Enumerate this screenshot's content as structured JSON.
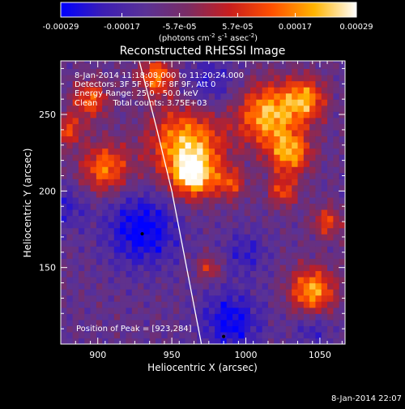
{
  "chart_data": {
    "type": "heatmap",
    "title": "Reconstructed RHESSI Image",
    "xlabel": "Heliocentric X (arcsec)",
    "ylabel": "Heliocentric Y (arcsec)",
    "xlim": [
      875,
      1067
    ],
    "ylim": [
      100,
      285
    ],
    "x_ticks": [
      900,
      950,
      1000,
      1050
    ],
    "y_ticks": [
      150,
      200,
      250
    ],
    "colorbar": {
      "range": [
        -0.00029,
        0.00029
      ],
      "tick_values": [
        -0.00029,
        -0.00017,
        -5.7e-05,
        5.7e-05,
        0.00017,
        0.00029
      ],
      "tick_labels": [
        "-0.00029",
        "-0.00017",
        "-5.7e-05",
        "5.7e-05",
        "0.00017",
        "0.00029"
      ],
      "unit_prefix": "(photons cm",
      "unit_sup1": "-2",
      "unit_mid": " s",
      "unit_sup2": "-1",
      "unit_mid2": " asec",
      "unit_sup3": "-2",
      "unit_suffix": ")",
      "colors": [
        "#0000ff",
        "#3c1eb4",
        "#5a3296",
        "#7a2c64",
        "#c81e1e",
        "#ff5000",
        "#ffb400",
        "#ffffff"
      ]
    },
    "annotations": [
      "8-Jan-2014 11:18:08.000 to 11:20:24.000",
      "Detectors: 3F 5F 6F 7F 8F 9F, Att 0",
      "Energy Range: 25.0 - 50.0 keV",
      "Clean      Total counts: 3.75E+03"
    ],
    "peak_label": "Position of Peak = [923,284]",
    "limb_points": [
      [
        928,
        285
      ],
      [
        940,
        240
      ],
      [
        950,
        200
      ],
      [
        958,
        160
      ],
      [
        966,
        120
      ],
      [
        970,
        100
      ]
    ],
    "markers": [
      [
        930,
        172
      ],
      [
        985,
        105
      ]
    ],
    "hot_spots": [
      [
        960,
        230,
        25,
        1.0
      ],
      [
        965,
        210,
        14,
        0.9
      ],
      [
        1015,
        250,
        20,
        1.0
      ],
      [
        1030,
        225,
        14,
        0.9
      ],
      [
        1040,
        260,
        14,
        0.85
      ],
      [
        1045,
        135,
        15,
        0.95
      ],
      [
        905,
        215,
        16,
        0.8
      ],
      [
        895,
        260,
        12,
        0.7
      ],
      [
        940,
        275,
        12,
        0.8
      ],
      [
        1025,
        200,
        10,
        0.6
      ],
      [
        880,
        240,
        10,
        0.6
      ],
      [
        990,
        205,
        10,
        0.55
      ],
      [
        975,
        150,
        8,
        0.5
      ],
      [
        1055,
        180,
        10,
        0.6
      ]
    ],
    "cold_spots": [
      [
        930,
        175,
        24,
        1.0
      ],
      [
        990,
        115,
        20,
        0.9
      ],
      [
        975,
        270,
        18,
        0.6
      ],
      [
        880,
        190,
        14,
        0.5
      ],
      [
        1000,
        160,
        14,
        0.55
      ],
      [
        1045,
        110,
        12,
        0.5
      ]
    ],
    "timestamp": "8-Jan-2014 22:07"
  }
}
